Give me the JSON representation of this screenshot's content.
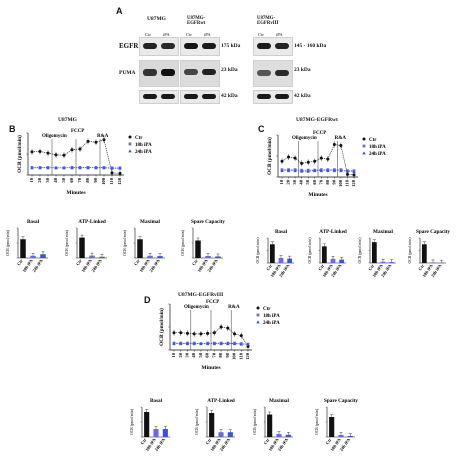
{
  "panel_a": {
    "letter": "A",
    "lines": [
      "U87MG",
      "U87MG-EGFRwt",
      "U87MG-EGFRvIII"
    ],
    "lane_labels": [
      "Ctr",
      "iPA"
    ],
    "rows": [
      {
        "protein": "EGFR",
        "mw_left": "175 kDa",
        "mw_right": "145 - 160 kDa"
      },
      {
        "protein": "PUMA",
        "mw_left": "23 kDa",
        "mw_right": "23 kDa"
      },
      {
        "protein": "",
        "mw_left": "42 kDa",
        "mw_right": "42 kDa"
      }
    ]
  },
  "panel_b": {
    "letter": "B",
    "title": "U87MG",
    "annotations": [
      "Oligomycin",
      "FCCP",
      "R&A"
    ],
    "legend": [
      "Ctr",
      "18h iPA",
      "24h iPA"
    ],
    "xlabel": "Minutes",
    "ylabel": "OCR (pmol/min)",
    "bar_titles": [
      "Basal",
      "ATP-Linked",
      "Maximal",
      "Spare Capacity"
    ]
  },
  "panel_c": {
    "letter": "C",
    "title": "U87MG-EGFRwt",
    "annotations": [
      "Oligomycin",
      "FCCP",
      "R&A"
    ],
    "legend": [
      "Ctr",
      "18h iPA",
      "24h iPA"
    ],
    "xlabel": "Minutes",
    "ylabel": "OCR (pmol/min)",
    "bar_titles": [
      "Basal",
      "ATP-Linked",
      "Maximal",
      "Spare Capacity"
    ]
  },
  "panel_d": {
    "letter": "D",
    "title": "U87MG-EGFRvIII",
    "annotations": [
      "Oligomycin",
      "FCCP",
      "R&A"
    ],
    "legend": [
      "Ctr",
      "18h iPA",
      "24h iPA"
    ],
    "xlabel": "Minutes",
    "ylabel": "OCR (pmol/min)",
    "bar_titles": [
      "Basal",
      "ATP-Linked",
      "Maximal",
      "Spare Capacity"
    ]
  },
  "bar_categories": [
    "Ctr",
    "18h iPA",
    "24h iPA"
  ],
  "colors": {
    "ctr": "#111111",
    "ipa18": "#6b6bd8",
    "ipa24": "#3a56c9"
  },
  "chart_data": [
    {
      "id": "B-timecourse",
      "type": "line",
      "x": [
        10,
        20,
        30,
        40,
        50,
        60,
        70,
        80,
        90,
        100,
        110,
        120
      ],
      "series": [
        {
          "name": "Ctr",
          "values": [
            55,
            56,
            52,
            48,
            47,
            60,
            62,
            80,
            78,
            84,
            5,
            4
          ]
        },
        {
          "name": "18h iPA",
          "values": [
            18,
            18,
            18,
            17,
            17,
            18,
            18,
            18,
            18,
            18,
            17,
            17
          ]
        },
        {
          "name": "24h iPA",
          "values": [
            17,
            17,
            17,
            17,
            17,
            17,
            17,
            17,
            17,
            17,
            16,
            16
          ]
        }
      ],
      "ylim": [
        0,
        100
      ]
    },
    {
      "id": "C-timecourse",
      "type": "line",
      "x": [
        10,
        20,
        30,
        40,
        50,
        60,
        70,
        80,
        90,
        100,
        110,
        120
      ],
      "series": [
        {
          "name": "Ctr",
          "values": [
            30,
            38,
            36,
            26,
            28,
            30,
            36,
            34,
            62,
            60,
            5,
            4
          ]
        },
        {
          "name": "18h iPA",
          "values": [
            14,
            14,
            14,
            13,
            13,
            13,
            14,
            14,
            14,
            14,
            12,
            12
          ]
        },
        {
          "name": "24h iPA",
          "values": [
            12,
            12,
            12,
            11,
            11,
            12,
            12,
            12,
            12,
            12,
            11,
            10
          ]
        }
      ],
      "ylim": [
        0,
        80
      ]
    },
    {
      "id": "D-timecourse",
      "type": "line",
      "x": [
        10,
        20,
        30,
        40,
        50,
        60,
        70,
        80,
        90,
        100,
        110,
        120
      ],
      "series": [
        {
          "name": "Ctr",
          "values": [
            30,
            30,
            29,
            28,
            28,
            29,
            30,
            40,
            38,
            28,
            25,
            6
          ]
        },
        {
          "name": "18h iPA",
          "values": [
            12,
            12,
            12,
            12,
            11,
            12,
            12,
            12,
            12,
            12,
            11,
            10
          ]
        },
        {
          "name": "24h iPA",
          "values": [
            11,
            11,
            11,
            11,
            11,
            11,
            11,
            11,
            11,
            11,
            10,
            10
          ]
        }
      ],
      "ylim": [
        0,
        80
      ]
    },
    {
      "id": "B-basal",
      "type": "bar",
      "categories": [
        "Ctr",
        "18h iPA",
        "24h iPA"
      ],
      "values": [
        25,
        3,
        5
      ],
      "ylim": [
        0,
        40
      ]
    },
    {
      "id": "B-atp",
      "type": "bar",
      "categories": [
        "Ctr",
        "18h iPA",
        "24h iPA"
      ],
      "values": [
        17,
        2,
        1
      ],
      "ylim": [
        0,
        25
      ]
    },
    {
      "id": "B-maximal",
      "type": "bar",
      "categories": [
        "Ctr",
        "18h iPA",
        "24h iPA"
      ],
      "values": [
        50,
        6,
        5
      ],
      "ylim": [
        0,
        80
      ]
    },
    {
      "id": "B-spare",
      "type": "bar",
      "categories": [
        "Ctr",
        "18h iPA",
        "24h iPA"
      ],
      "values": [
        35,
        4,
        3
      ],
      "ylim": [
        0,
        60
      ]
    },
    {
      "id": "C-basal",
      "type": "bar",
      "categories": [
        "Ctr",
        "18h iPA",
        "24h iPA"
      ],
      "values": [
        30,
        8,
        7
      ],
      "ylim": [
        0,
        40
      ]
    },
    {
      "id": "C-atp",
      "type": "bar",
      "categories": [
        "Ctr",
        "18h iPA",
        "24h iPA"
      ],
      "values": [
        20,
        5,
        4
      ],
      "ylim": [
        0,
        30
      ]
    },
    {
      "id": "C-maximal",
      "type": "bar",
      "categories": [
        "Ctr",
        "18h iPA",
        "24h iPA"
      ],
      "values": [
        50,
        3,
        2
      ],
      "ylim": [
        0,
        60
      ]
    },
    {
      "id": "C-spare",
      "type": "bar",
      "categories": [
        "Ctr",
        "18h iPA",
        "24h iPA"
      ],
      "values": [
        60,
        2,
        1
      ],
      "ylim": [
        0,
        80
      ]
    },
    {
      "id": "D-basal",
      "type": "bar",
      "categories": [
        "Ctr",
        "18h iPA",
        "24h iPA"
      ],
      "values": [
        25,
        8,
        8
      ],
      "ylim": [
        0,
        30
      ]
    },
    {
      "id": "D-atp",
      "type": "bar",
      "categories": [
        "Ctr",
        "18h iPA",
        "24h iPA"
      ],
      "values": [
        20,
        4,
        4
      ],
      "ylim": [
        0,
        25
      ]
    },
    {
      "id": "D-maximal",
      "type": "bar",
      "categories": [
        "Ctr",
        "18h iPA",
        "24h iPA"
      ],
      "values": [
        30,
        4,
        3
      ],
      "ylim": [
        0,
        40
      ]
    },
    {
      "id": "D-spare",
      "type": "bar",
      "categories": [
        "Ctr",
        "18h iPA",
        "24h iPA"
      ],
      "values": [
        10,
        1,
        0.5
      ],
      "ylim": [
        0,
        15
      ]
    }
  ]
}
